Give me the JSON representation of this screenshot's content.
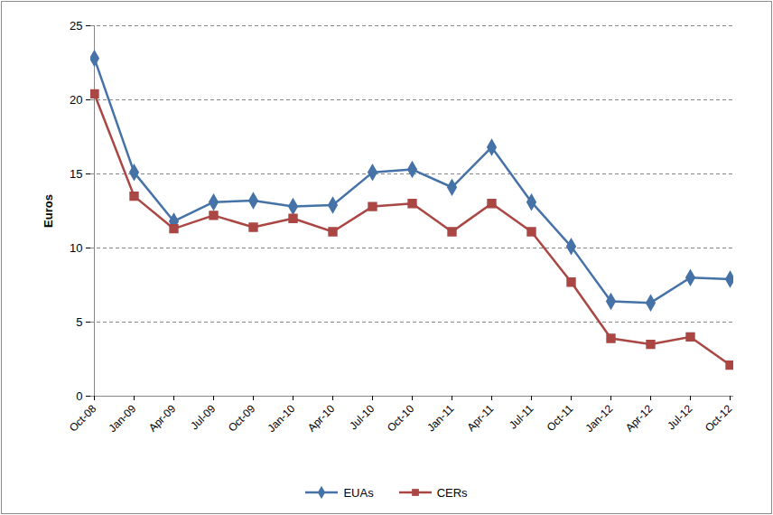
{
  "chart_data": {
    "type": "line",
    "y_label": "Euros",
    "categories": [
      "Oct-08",
      "Jan-09",
      "Apr-09",
      "Jul-09",
      "Oct-09",
      "Jan-10",
      "Apr-10",
      "Jul-10",
      "Oct-10",
      "Jan-11",
      "Apr-11",
      "Jul-11",
      "Oct-11",
      "Jan-12",
      "Apr-12",
      "Jul-12",
      "Oct-12"
    ],
    "series": [
      {
        "name": "EUAs",
        "color": "#4572a7",
        "marker": "diamond",
        "values": [
          22.8,
          15.1,
          11.8,
          13.1,
          13.2,
          12.8,
          12.9,
          15.1,
          15.3,
          14.1,
          16.8,
          13.1,
          10.1,
          6.4,
          6.3,
          8.0,
          7.9
        ]
      },
      {
        "name": "CERs",
        "color": "#aa4643",
        "marker": "square",
        "values": [
          20.4,
          13.5,
          11.3,
          12.2,
          11.4,
          12.0,
          11.1,
          12.8,
          13.0,
          11.1,
          13.0,
          11.1,
          7.7,
          3.9,
          3.5,
          4.0,
          2.1
        ]
      }
    ],
    "ylim": [
      0,
      25
    ],
    "yticks": [
      0,
      5,
      10,
      15,
      20,
      25
    ],
    "grid": true,
    "legend": "bottom"
  }
}
